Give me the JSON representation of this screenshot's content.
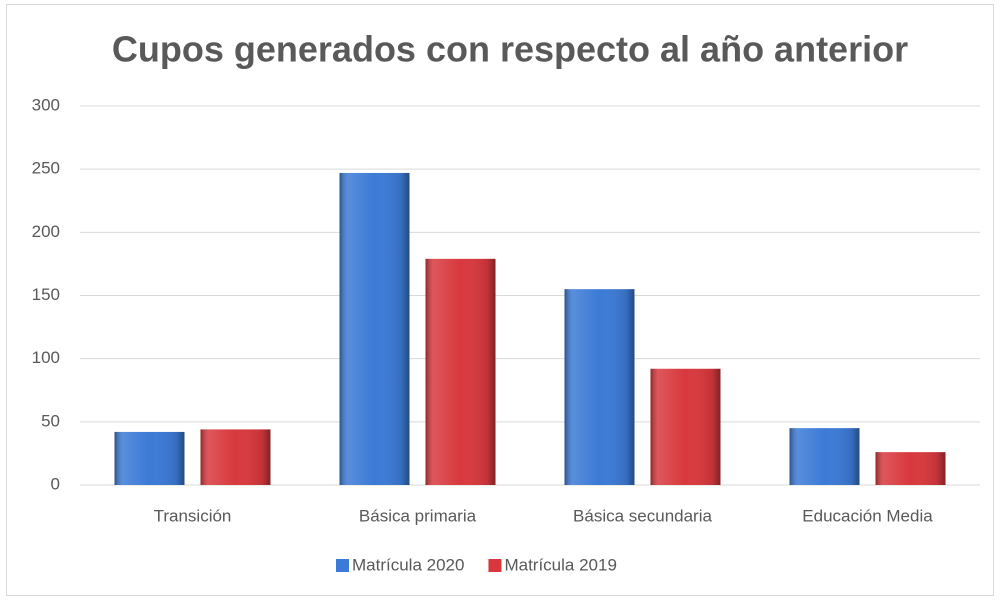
{
  "chart_data": {
    "type": "bar",
    "title": "Cupos generados con respecto al año anterior",
    "categories": [
      "Transición",
      "Básica primaria",
      "Básica secundaria",
      "Educación Media"
    ],
    "series": [
      {
        "name": "Matrícula 2020",
        "color": "#3b7ad6",
        "values": [
          42,
          247,
          155,
          45
        ]
      },
      {
        "name": "Matrícula 2019",
        "color": "#d8383d",
        "values": [
          44,
          179,
          92,
          26
        ]
      }
    ],
    "ylim": [
      0,
      300
    ],
    "yticks": [
      0,
      50,
      100,
      150,
      200,
      250,
      300
    ],
    "grid": true,
    "legend": "bottom"
  }
}
